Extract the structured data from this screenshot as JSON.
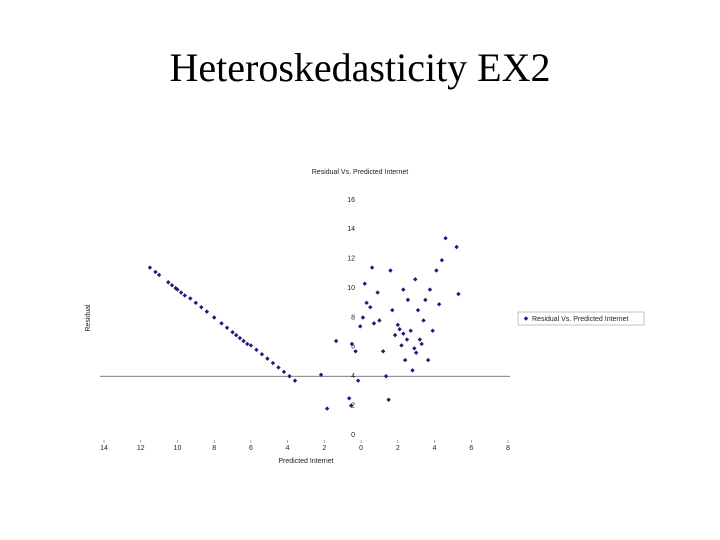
{
  "slide_title": "Heteroskedasticity EX2",
  "chart_data": {
    "type": "scatter",
    "title": "Residual Vs. Predicted Internet",
    "x_label": "Predicted Internet",
    "y_label": "Residual",
    "xlim": [
      -14,
      8
    ],
    "xticks": [
      {
        "value": -14,
        "label": "14"
      },
      {
        "value": -12,
        "label": "12"
      },
      {
        "value": -10,
        "label": "10"
      },
      {
        "value": -8,
        "label": "8"
      },
      {
        "value": -6,
        "label": "6"
      },
      {
        "value": -4,
        "label": "4"
      },
      {
        "value": -2,
        "label": "2"
      },
      0,
      2,
      4,
      6,
      8
    ],
    "ylim": [
      0,
      16
    ],
    "yticks": [
      0,
      2,
      4,
      6,
      8,
      10,
      12,
      14,
      16
    ],
    "x_axis_crossing": 4,
    "legend": "right",
    "series": [
      {
        "name": "Residual Vs. Predicted Internet",
        "color": "#1c1c78",
        "x": [
          -11.5,
          -11.2,
          -11.0,
          -10.5,
          -10.3,
          -10.1,
          -10.0,
          -9.8,
          -9.6,
          -9.3,
          -9.0,
          -8.7,
          -8.4,
          -8.0,
          -7.6,
          -7.3,
          -7.0,
          -6.8,
          -6.6,
          -6.4,
          -6.2,
          -6.0,
          -5.7,
          -5.4,
          -5.1,
          -4.8,
          -4.5,
          -4.2,
          -3.9,
          -3.6,
          -1.85,
          -2.18,
          -1.36,
          -0.65,
          -0.54,
          -0.5,
          -0.3,
          -0.16,
          -0.05,
          0.1,
          0.2,
          0.6,
          0.3,
          0.5,
          0.7,
          0.9,
          1.0,
          1.2,
          1.36,
          1.5,
          1.7,
          1.6,
          1.85,
          2.0,
          2.2,
          2.3,
          2.4,
          2.55,
          2.7,
          2.8,
          2.95,
          3.1,
          3.2,
          3.4,
          3.5,
          3.65,
          3.75,
          3.9,
          4.1,
          4.25,
          4.4,
          4.6,
          5.2,
          5.3,
          2.1,
          2.3,
          2.5,
          2.9,
          3.0,
          3.3
        ],
        "values": [
          11.4,
          11.1,
          10.9,
          10.4,
          10.2,
          10.0,
          9.9,
          9.7,
          9.5,
          9.3,
          9.0,
          8.7,
          8.4,
          8.0,
          7.6,
          7.3,
          7.0,
          6.8,
          6.6,
          6.4,
          6.2,
          6.1,
          5.8,
          5.5,
          5.2,
          4.9,
          4.6,
          4.3,
          4.0,
          3.7,
          1.8,
          4.1,
          6.4,
          2.5,
          2.0,
          6.2,
          5.7,
          3.7,
          7.4,
          8.0,
          10.3,
          11.4,
          9.0,
          8.7,
          7.6,
          9.7,
          7.8,
          5.7,
          4.0,
          2.4,
          8.5,
          11.2,
          6.8,
          7.5,
          6.1,
          9.9,
          5.1,
          9.2,
          7.1,
          4.4,
          10.6,
          8.5,
          6.5,
          7.8,
          9.2,
          5.1,
          9.9,
          7.1,
          11.2,
          8.9,
          11.9,
          13.4,
          12.8,
          9.6,
          7.2,
          6.9,
          6.5,
          5.9,
          5.6,
          6.2
        ]
      }
    ]
  }
}
